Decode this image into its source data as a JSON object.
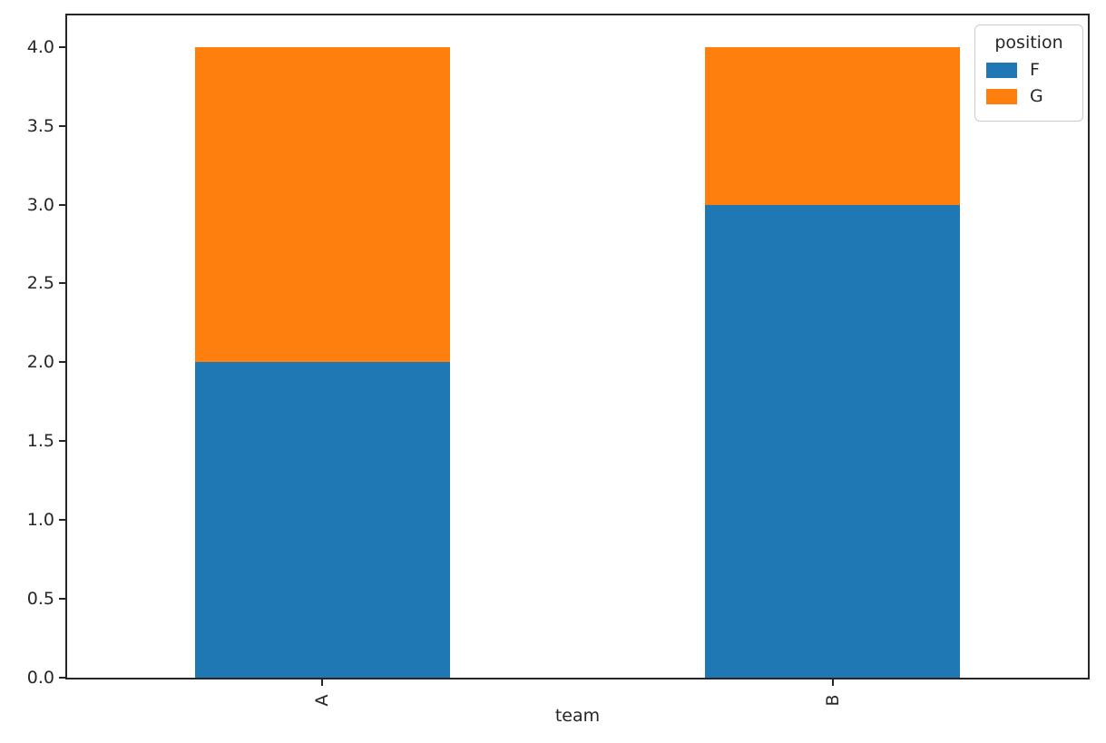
{
  "figure": {
    "background": "#ffffff",
    "axis_color": "#262626"
  },
  "chart_data": {
    "type": "bar",
    "stacked": true,
    "title": "",
    "xlabel": "team",
    "ylabel": "",
    "categories": [
      "A",
      "B"
    ],
    "series": [
      {
        "name": "F",
        "color": "#1f77b4",
        "values": [
          2.0,
          3.0
        ]
      },
      {
        "name": "G",
        "color": "#ff7f0e",
        "values": [
          2.0,
          1.0
        ]
      }
    ],
    "ylim": [
      0,
      4.2
    ],
    "ytick_labels": [
      "0.0",
      "0.5",
      "1.0",
      "1.5",
      "2.0",
      "2.5",
      "3.0",
      "3.5",
      "4.0"
    ],
    "xtick_rotation_deg": 90,
    "bar_width_fraction": 0.5,
    "grid": false,
    "legend": {
      "title": "position",
      "position": "upper-right",
      "entries": [
        {
          "label": "F",
          "color": "#1f77b4"
        },
        {
          "label": "G",
          "color": "#ff7f0e"
        }
      ]
    }
  }
}
